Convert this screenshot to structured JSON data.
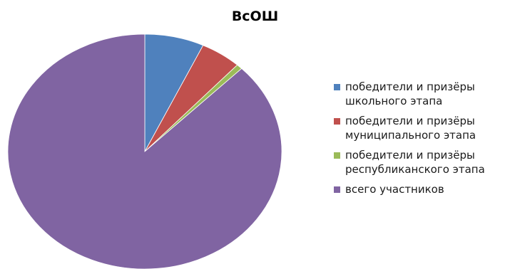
{
  "chart_data": {
    "type": "pie",
    "title": "ВсОШ",
    "legend_position": "right",
    "slices": [
      {
        "label": "победители и призёры\nшкольного этапа",
        "value": 7.0,
        "color": "#4f81bd"
      },
      {
        "label": "победители  и призёры\nмуниципального этапа",
        "value": 4.8,
        "color": "#c0504d"
      },
      {
        "label": "победители и призёры\nреспубликанского этапа",
        "value": 0.7,
        "color": "#9bbb59"
      },
      {
        "label": "всего участников",
        "value": 87.5,
        "color": "#8064a2"
      }
    ]
  }
}
